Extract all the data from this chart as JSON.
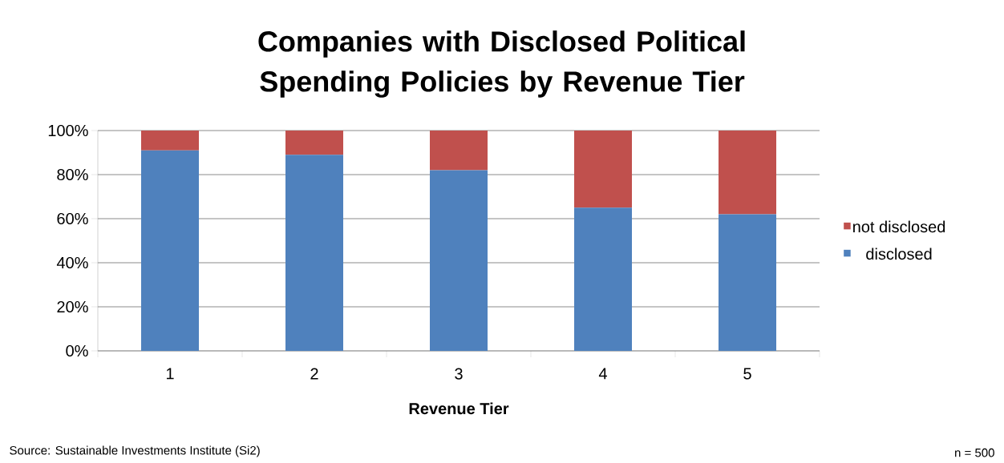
{
  "chart_data": {
    "type": "bar",
    "title": "Companies with Disclosed Political Spending Policies by Revenue Tier",
    "categories": [
      "1",
      "2",
      "3",
      "4",
      "5"
    ],
    "series": [
      {
        "name": "disclosed",
        "color": "#4f81bd",
        "values": [
          91,
          89,
          82,
          65,
          62
        ]
      },
      {
        "name": "not disclosed",
        "color": "#c0504d",
        "values": [
          9,
          11,
          18,
          35,
          38
        ]
      }
    ],
    "stacked": true,
    "xlabel": "Revenue Tier",
    "ylim": [
      0,
      100
    ],
    "yticks": [
      {
        "value": 0,
        "label": "0%"
      },
      {
        "value": 20,
        "label": "20%"
      },
      {
        "value": 40,
        "label": "40%"
      },
      {
        "value": 60,
        "label": "60%"
      },
      {
        "value": 80,
        "label": "80%"
      },
      {
        "value": 100,
        "label": "100%"
      }
    ],
    "grid": "y",
    "legend": "right",
    "annotations": [
      "Source: Sustainable Investments Institute (Si2)",
      "n = 500"
    ]
  }
}
